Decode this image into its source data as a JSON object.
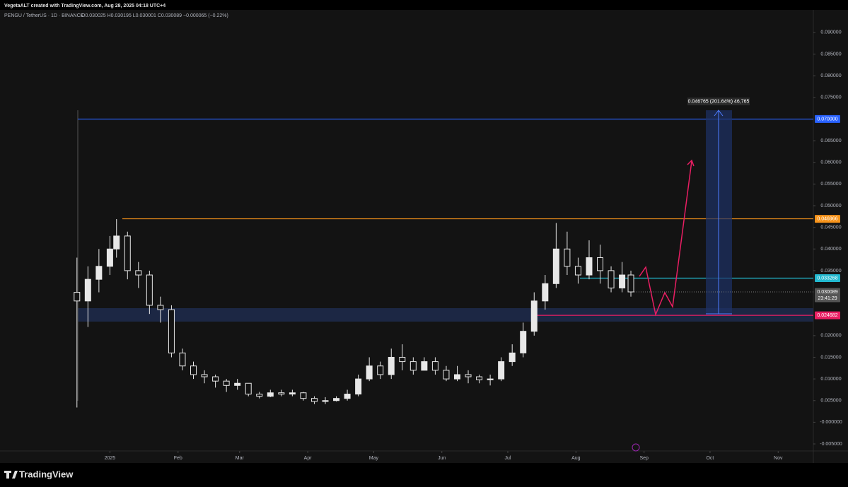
{
  "header": "VegetaALT created with TradingView.com, Aug 28, 2025 04:18 UTC+4",
  "footer_brand": "TradingView",
  "chart_data": {
    "type": "candlestick",
    "title": "PENGU / TetherUS · 1D · BINANCE",
    "ohlc_legend": "O0.030025 H0.030195 L0.030001 C0.030089 −0.000065 (−0.22%)",
    "x": [
      -15,
      -10,
      -5,
      0,
      3,
      8,
      13,
      18,
      23,
      28,
      33,
      38,
      43,
      48,
      53,
      58,
      63,
      68,
      73,
      78,
      83,
      88,
      93,
      98,
      103,
      108,
      113,
      118,
      123,
      128,
      133,
      138,
      143,
      148,
      153,
      158,
      163,
      168,
      173,
      178,
      183,
      188,
      193,
      198,
      203,
      208,
      213,
      218,
      223,
      228,
      233,
      237
    ],
    "open": [
      0.03,
      0.028,
      0.033,
      0.036,
      0.04,
      0.043,
      0.035,
      0.034,
      0.027,
      0.026,
      0.016,
      0.013,
      0.011,
      0.0105,
      0.0095,
      0.0085,
      0.009,
      0.0065,
      0.006,
      0.0068,
      0.0065,
      0.0068,
      0.0055,
      0.0048,
      0.005,
      0.0055,
      0.0065,
      0.01,
      0.013,
      0.011,
      0.015,
      0.014,
      0.012,
      0.014,
      0.012,
      0.01,
      0.011,
      0.0105,
      0.0098,
      0.01,
      0.014,
      0.016,
      0.021,
      0.028,
      0.032,
      0.04,
      0.036,
      0.034,
      0.038,
      0.035,
      0.031,
      0.034
    ],
    "high": [
      0.038,
      0.036,
      0.04,
      0.043,
      0.0469,
      0.044,
      0.037,
      0.035,
      0.029,
      0.027,
      0.017,
      0.014,
      0.012,
      0.011,
      0.01,
      0.01,
      0.009,
      0.007,
      0.0075,
      0.0075,
      0.0075,
      0.007,
      0.006,
      0.0058,
      0.006,
      0.0075,
      0.011,
      0.015,
      0.014,
      0.017,
      0.018,
      0.015,
      0.015,
      0.015,
      0.013,
      0.013,
      0.012,
      0.011,
      0.011,
      0.015,
      0.018,
      0.023,
      0.03,
      0.034,
      0.046,
      0.044,
      0.038,
      0.042,
      0.041,
      0.036,
      0.037,
      0.035
    ],
    "low": [
      0.0034,
      0.022,
      0.03,
      0.034,
      0.038,
      0.033,
      0.031,
      0.025,
      0.023,
      0.015,
      0.012,
      0.01,
      0.009,
      0.008,
      0.007,
      0.0075,
      0.006,
      0.0055,
      0.0058,
      0.006,
      0.006,
      0.005,
      0.0042,
      0.0042,
      0.0048,
      0.005,
      0.006,
      0.0095,
      0.01,
      0.01,
      0.012,
      0.011,
      0.012,
      0.011,
      0.0095,
      0.0095,
      0.009,
      0.009,
      0.0085,
      0.0095,
      0.013,
      0.015,
      0.02,
      0.026,
      0.031,
      0.034,
      0.032,
      0.033,
      0.032,
      0.03,
      0.03,
      0.029
    ],
    "close": [
      0.028,
      0.033,
      0.036,
      0.04,
      0.043,
      0.035,
      0.034,
      0.027,
      0.026,
      0.016,
      0.013,
      0.011,
      0.0105,
      0.0095,
      0.0085,
      0.009,
      0.0065,
      0.006,
      0.0068,
      0.0065,
      0.0068,
      0.0055,
      0.0048,
      0.005,
      0.0055,
      0.0065,
      0.01,
      0.013,
      0.011,
      0.015,
      0.014,
      0.012,
      0.014,
      0.012,
      0.01,
      0.011,
      0.0105,
      0.0098,
      0.01,
      0.014,
      0.016,
      0.021,
      0.028,
      0.032,
      0.04,
      0.036,
      0.034,
      0.038,
      0.035,
      0.031,
      0.034,
      0.030089
    ],
    "color": "#e8e8e8",
    "xlim": [
      -50,
      320
    ],
    "xticks": [
      {
        "value": 0,
        "label": "2025"
      },
      {
        "value": 31,
        "label": "Feb"
      },
      {
        "value": 59,
        "label": "Mar"
      },
      {
        "value": 90,
        "label": "Apr"
      },
      {
        "value": 120,
        "label": "May"
      },
      {
        "value": 151,
        "label": "Jun"
      },
      {
        "value": 181,
        "label": "Jul"
      },
      {
        "value": 212,
        "label": "Aug"
      },
      {
        "value": 243,
        "label": "Sep"
      },
      {
        "value": 273,
        "label": "Oct"
      },
      {
        "value": 304,
        "label": "Nov"
      }
    ],
    "ylim": [
      -0.0094,
      0.0952
    ],
    "yticks": [
      {
        "value": 0.09,
        "label": "0.090000"
      },
      {
        "value": 0.085,
        "label": "0.085000"
      },
      {
        "value": 0.08,
        "label": "0.080000"
      },
      {
        "value": 0.075,
        "label": "0.075000"
      },
      {
        "value": 0.065,
        "label": "0.065000"
      },
      {
        "value": 0.06,
        "label": "0.060000"
      },
      {
        "value": 0.055,
        "label": "0.055000"
      },
      {
        "value": 0.05,
        "label": "0.050000"
      },
      {
        "value": 0.045,
        "label": "0.045000"
      },
      {
        "value": 0.04,
        "label": "0.040000"
      },
      {
        "value": 0.035,
        "label": "0.035000"
      },
      {
        "value": 0.02,
        "label": "0.020000"
      },
      {
        "value": 0.015,
        "label": "0.015000"
      },
      {
        "value": 0.01,
        "label": "0.010000"
      },
      {
        "value": 0.005,
        "label": "0.005000"
      },
      {
        "value": 0,
        "label": "-0.000000"
      },
      {
        "value": -0.005,
        "label": "-0.005000"
      }
    ],
    "levels": [
      {
        "value": 0.07,
        "label": "0.070000",
        "color": "#2962ff"
      },
      {
        "value": 0.046966,
        "label": "0.046966",
        "color": "#f7931a"
      },
      {
        "value": 0.033268,
        "label": "0.033268",
        "color": "#22b8cf"
      },
      {
        "value": 0.024682,
        "label": "0.024682",
        "color": "#e91e63"
      }
    ],
    "last_price": {
      "value": 0.030089,
      "label": "0.030089",
      "countdown": "23:41:29"
    },
    "measure_label": "0.046765 (201.64%) 46,765"
  }
}
